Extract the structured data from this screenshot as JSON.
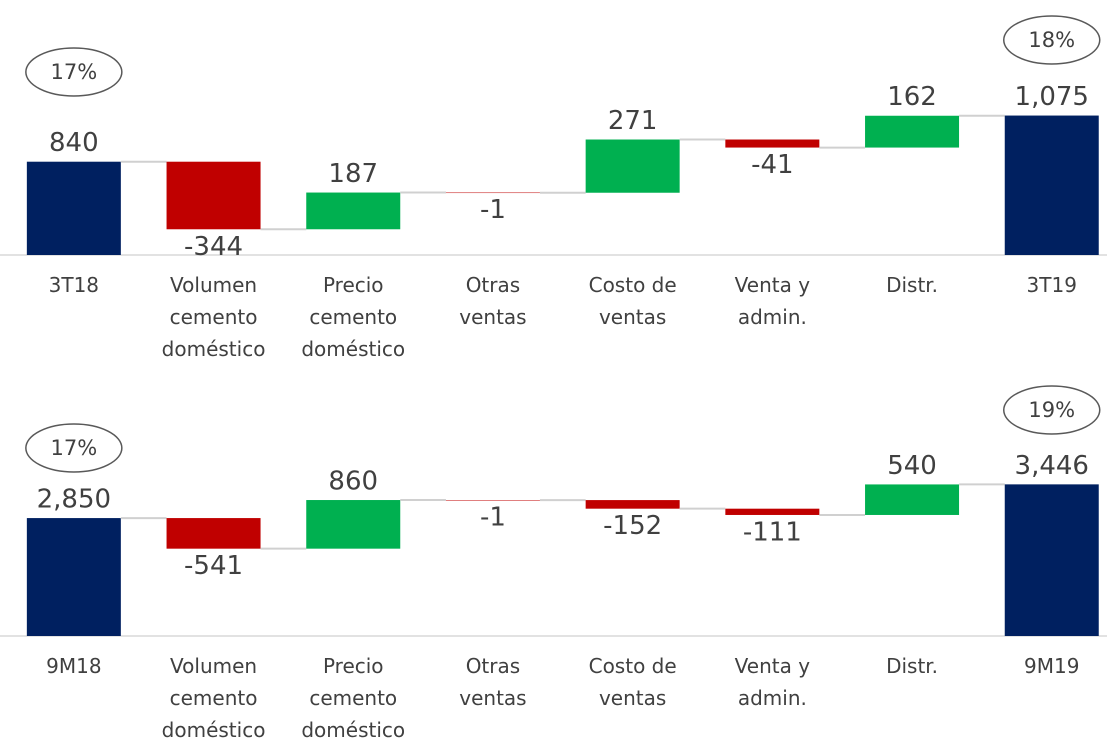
{
  "chart_data": [
    {
      "type": "waterfall",
      "categories": [
        "3T18",
        "Volumen cemento doméstico",
        "Precio cemento doméstico",
        "Otras ventas",
        "Costo de ventas",
        "Venta y admin.",
        "Distr.",
        "3T19"
      ],
      "values": [
        840,
        -344,
        187,
        -1,
        271,
        -41,
        162,
        1075
      ],
      "value_labels": [
        "840",
        "-344",
        "187",
        "-1",
        "271",
        "-41",
        "162",
        "1,075"
      ],
      "totals": [
        true,
        false,
        false,
        false,
        false,
        false,
        false,
        true
      ],
      "annotations": [
        "17%",
        "18%"
      ],
      "colors": {
        "total": "#002060",
        "increase": "#00b050",
        "decrease": "#c00000"
      },
      "ylim": [
        365,
        1200
      ]
    },
    {
      "type": "waterfall",
      "categories": [
        "9M18",
        "Volumen cemento doméstico",
        "Precio cemento doméstico",
        "Otras ventas",
        "Costo de ventas",
        "Venta y admin.",
        "Distr.",
        "9M19"
      ],
      "values": [
        2850,
        -541,
        860,
        -1,
        -152,
        -111,
        540,
        3446
      ],
      "value_labels": [
        "2,850",
        "-541",
        "860",
        "-1",
        "-152",
        "-111",
        "540",
        "3,446"
      ],
      "totals": [
        true,
        false,
        false,
        false,
        false,
        false,
        false,
        true
      ],
      "annotations": [
        "17%",
        "19%"
      ],
      "colors": {
        "total": "#002060",
        "increase": "#00b050",
        "decrease": "#c00000"
      },
      "ylim": [
        765,
        3700
      ]
    }
  ]
}
